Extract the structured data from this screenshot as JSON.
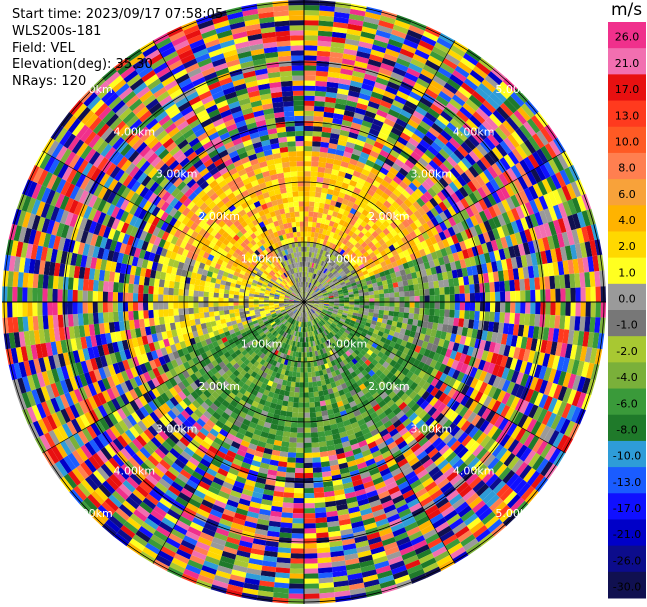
{
  "header": {
    "start_time": "Start time: 2023/09/17 07:58:05",
    "instrument": "WLS200s-181",
    "field": "Field: VEL",
    "elevation": "Elevation(deg): 35.30",
    "nrays": "NRays: 120"
  },
  "colorbar": {
    "unit": "m/s",
    "ticks": [
      "26.0",
      "21.0",
      "17.0",
      "13.0",
      "10.0",
      "8.0",
      "6.0",
      "4.0",
      "2.0",
      "1.0",
      "0.0",
      "-1.0",
      "-2.0",
      "-4.0",
      "-6.0",
      "-8.0",
      "-10.0",
      "-13.0",
      "-17.0",
      "-21.0",
      "-26.0",
      "-30.0"
    ],
    "colors": [
      "#f0308c",
      "#f26fb0",
      "#e81010",
      "#ff3a1e",
      "#ff5a24",
      "#ff7f50",
      "#f8a23a",
      "#ffb300",
      "#ffd800",
      "#ffff20",
      "#9a9a9a",
      "#777777",
      "#a8c832",
      "#7ab03a",
      "#3a9a3a",
      "#1f7a2a",
      "#2e9cd8",
      "#1a5cff",
      "#1010ff",
      "#0000c8",
      "#0c0c8c",
      "#101050"
    ]
  },
  "range_rings": [
    {
      "label": "1.00km"
    },
    {
      "label": "2.00km"
    },
    {
      "label": "3.00km"
    },
    {
      "label": "4.00km"
    },
    {
      "label": "5.00km"
    }
  ],
  "ppi": {
    "nrays": 120,
    "ngates": 60,
    "inner_zone": {
      "positive_colors": [
        "#ffd800",
        "#ffff20",
        "#ffb300",
        "#f8a23a",
        "#ff7f50"
      ],
      "near_zero_colors": [
        "#9a9a9a",
        "#777777",
        "#a8c832"
      ],
      "negative_colors": [
        "#3a9a3a",
        "#1f7a2a",
        "#7ab03a"
      ]
    },
    "noise_colors": [
      "#f0308c",
      "#e81010",
      "#ff3a1e",
      "#ff7f50",
      "#ffb300",
      "#ffff20",
      "#ffd800",
      "#a8c832",
      "#3a9a3a",
      "#1f7a2a",
      "#2e9cd8",
      "#1a5cff",
      "#1010ff",
      "#0000c8",
      "#0c0c8c",
      "#101050",
      "#f26fb0",
      "#7ab03a",
      "#9a9a9a"
    ]
  }
}
